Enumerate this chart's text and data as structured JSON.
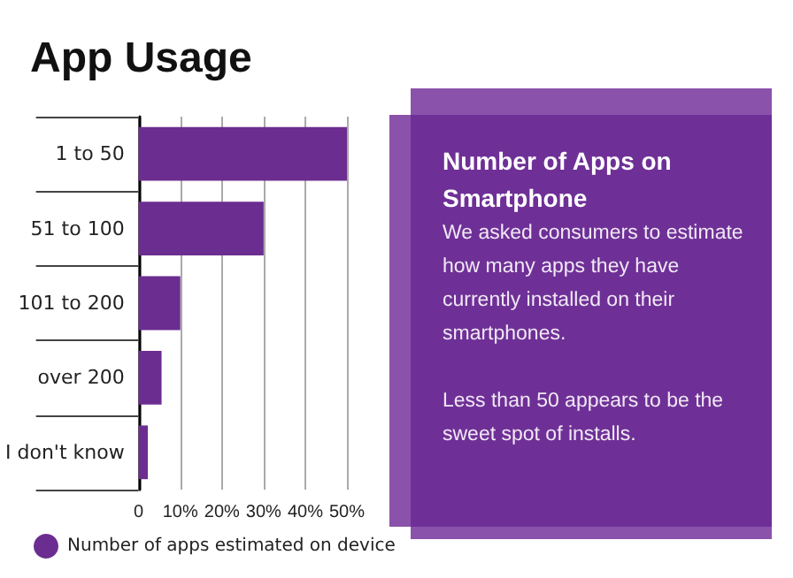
{
  "chart_data": {
    "type": "bar",
    "orientation": "horizontal",
    "title": "App Usage",
    "subtitle": "Number of Apps on Smartphone",
    "annotations": [
      "We asked consumers to estimate how many apps they have currently installed on their smartphones.",
      "Less than 50 appears to be the sweet spot of installs."
    ],
    "categories": [
      "1 to 50",
      "51 to 100",
      "101 to 200",
      "over 200",
      "I don't know"
    ],
    "series": [
      {
        "name": "Number of apps estimated on device",
        "color": "#6b2d90",
        "values": [
          50,
          30,
          10,
          5.5,
          2.2
        ]
      }
    ],
    "xlim": [
      0,
      50
    ],
    "xticks": [
      {
        "value": 0,
        "label": "0"
      },
      {
        "value": 10,
        "label": "10%"
      },
      {
        "value": 20,
        "label": "20%"
      },
      {
        "value": 30,
        "label": "30%"
      },
      {
        "value": 40,
        "label": "40%"
      },
      {
        "value": 50,
        "label": "50%"
      }
    ],
    "grid": "x",
    "legend": "bottom left"
  }
}
